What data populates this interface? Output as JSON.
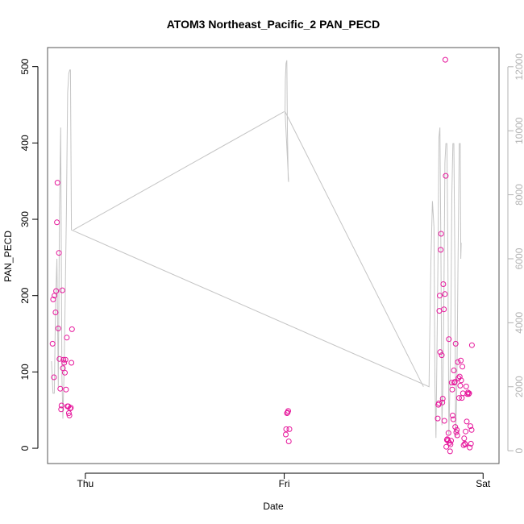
{
  "chart_data": {
    "type": "scatter",
    "title": "ATOM3 Northeast_Pacific_2 PAN_PECD",
    "xlabel": "Date",
    "ylabel": "PAN_PECD",
    "x_ticks": [
      {
        "label": "Thu",
        "day": 0
      },
      {
        "label": "Fri",
        "day": 1
      },
      {
        "label": "Sat",
        "day": 2
      }
    ],
    "xlim": [
      -0.19,
      2.08
    ],
    "ylim": [
      -20,
      525
    ],
    "y_ticks": [
      0,
      100,
      200,
      300,
      400,
      500
    ],
    "y2lim": [
      -400,
      12600
    ],
    "y2_ticks": [
      0,
      2000,
      4000,
      6000,
      8000,
      10000,
      12000
    ],
    "point_color": "#e6169b",
    "line_color": "#c4c4c4",
    "points": [
      {
        "x": -0.165,
        "y": 137
      },
      {
        "x": -0.162,
        "y": 195
      },
      {
        "x": -0.158,
        "y": 93
      },
      {
        "x": -0.155,
        "y": 200
      },
      {
        "x": -0.15,
        "y": 178
      },
      {
        "x": -0.147,
        "y": 206
      },
      {
        "x": -0.143,
        "y": 296
      },
      {
        "x": -0.14,
        "y": 348
      },
      {
        "x": -0.136,
        "y": 157
      },
      {
        "x": -0.133,
        "y": 256
      },
      {
        "x": -0.13,
        "y": 117
      },
      {
        "x": -0.126,
        "y": 78
      },
      {
        "x": -0.122,
        "y": 51
      },
      {
        "x": -0.12,
        "y": 56
      },
      {
        "x": -0.116,
        "y": 207
      },
      {
        "x": -0.113,
        "y": 105
      },
      {
        "x": -0.11,
        "y": 116
      },
      {
        "x": -0.106,
        "y": 112
      },
      {
        "x": -0.103,
        "y": 99
      },
      {
        "x": -0.1,
        "y": 116
      },
      {
        "x": -0.097,
        "y": 77
      },
      {
        "x": -0.093,
        "y": 145
      },
      {
        "x": -0.09,
        "y": 55
      },
      {
        "x": -0.086,
        "y": 55
      },
      {
        "x": -0.083,
        "y": 46
      },
      {
        "x": -0.08,
        "y": 43
      },
      {
        "x": -0.077,
        "y": 52
      },
      {
        "x": -0.073,
        "y": 53
      },
      {
        "x": -0.07,
        "y": 112
      },
      {
        "x": -0.067,
        "y": 156
      },
      {
        "x": 1.008,
        "y": 18
      },
      {
        "x": 1.01,
        "y": 25
      },
      {
        "x": 1.014,
        "y": 46
      },
      {
        "x": 1.017,
        "y": 47
      },
      {
        "x": 1.02,
        "y": 49
      },
      {
        "x": 1.023,
        "y": 9
      },
      {
        "x": 1.026,
        "y": 25
      },
      {
        "x": 1.772,
        "y": 39
      },
      {
        "x": 1.775,
        "y": 57
      },
      {
        "x": 1.778,
        "y": 59
      },
      {
        "x": 1.78,
        "y": 180
      },
      {
        "x": 1.782,
        "y": 200
      },
      {
        "x": 1.784,
        "y": 126
      },
      {
        "x": 1.787,
        "y": 260
      },
      {
        "x": 1.789,
        "y": 281
      },
      {
        "x": 1.792,
        "y": 122
      },
      {
        "x": 1.795,
        "y": 60
      },
      {
        "x": 1.797,
        "y": 65
      },
      {
        "x": 1.8,
        "y": 215
      },
      {
        "x": 1.803,
        "y": 182
      },
      {
        "x": 1.805,
        "y": 36
      },
      {
        "x": 1.808,
        "y": 202
      },
      {
        "x": 1.81,
        "y": 509
      },
      {
        "x": 1.812,
        "y": 357
      },
      {
        "x": 1.815,
        "y": 2
      },
      {
        "x": 1.818,
        "y": 11
      },
      {
        "x": 1.82,
        "y": 12
      },
      {
        "x": 1.823,
        "y": 10
      },
      {
        "x": 1.826,
        "y": 20
      },
      {
        "x": 1.828,
        "y": 143
      },
      {
        "x": 1.831,
        "y": 7
      },
      {
        "x": 1.834,
        "y": -4
      },
      {
        "x": 1.836,
        "y": 5
      },
      {
        "x": 1.839,
        "y": 10
      },
      {
        "x": 1.842,
        "y": 86
      },
      {
        "x": 1.845,
        "y": 77
      },
      {
        "x": 1.847,
        "y": 43
      },
      {
        "x": 1.85,
        "y": 38
      },
      {
        "x": 1.853,
        "y": 102
      },
      {
        "x": 1.855,
        "y": 86
      },
      {
        "x": 1.858,
        "y": 87
      },
      {
        "x": 1.86,
        "y": 28
      },
      {
        "x": 1.862,
        "y": 137
      },
      {
        "x": 1.865,
        "y": 21
      },
      {
        "x": 1.868,
        "y": 24
      },
      {
        "x": 1.87,
        "y": 17
      },
      {
        "x": 1.873,
        "y": 113
      },
      {
        "x": 1.876,
        "y": 92
      },
      {
        "x": 1.879,
        "y": 66
      },
      {
        "x": 1.882,
        "y": 94
      },
      {
        "x": 1.885,
        "y": 82
      },
      {
        "x": 1.888,
        "y": 115
      },
      {
        "x": 1.89,
        "y": 89
      },
      {
        "x": 1.893,
        "y": 66
      },
      {
        "x": 1.896,
        "y": 107
      },
      {
        "x": 1.899,
        "y": 72
      },
      {
        "x": 1.902,
        "y": 4
      },
      {
        "x": 1.905,
        "y": 13
      },
      {
        "x": 1.908,
        "y": 6
      },
      {
        "x": 1.91,
        "y": 5
      },
      {
        "x": 1.912,
        "y": 22
      },
      {
        "x": 1.915,
        "y": 81
      },
      {
        "x": 1.918,
        "y": 35
      },
      {
        "x": 1.921,
        "y": 71
      },
      {
        "x": 1.924,
        "y": 73
      },
      {
        "x": 1.927,
        "y": 71
      },
      {
        "x": 1.93,
        "y": 72
      },
      {
        "x": 1.933,
        "y": 1
      },
      {
        "x": 1.936,
        "y": 29
      },
      {
        "x": 1.939,
        "y": 6
      },
      {
        "x": 1.942,
        "y": 24
      },
      {
        "x": 1.944,
        "y": 135
      }
    ],
    "line_series": [
      [
        {
          "x": -0.17,
          "y2": 2800
        },
        {
          "x": -0.163,
          "y2": 1800
        },
        {
          "x": -0.156,
          "y2": 1800
        },
        {
          "x": -0.15,
          "y2": 4600
        },
        {
          "x": -0.143,
          "y2": 6000
        },
        {
          "x": -0.136,
          "y2": 2000
        },
        {
          "x": -0.13,
          "y2": 7500
        },
        {
          "x": -0.124,
          "y2": 10100
        },
        {
          "x": -0.118,
          "y2": 2300
        },
        {
          "x": -0.113,
          "y2": 1000
        },
        {
          "x": -0.107,
          "y2": 2500
        },
        {
          "x": -0.101,
          "y2": 5000
        },
        {
          "x": -0.095,
          "y2": 7500
        },
        {
          "x": -0.089,
          "y2": 11200
        },
        {
          "x": -0.083,
          "y2": 11800
        },
        {
          "x": -0.078,
          "y2": 11900
        },
        {
          "x": -0.075,
          "y2": 11900
        },
        {
          "x": -0.072,
          "y2": 9000
        },
        {
          "x": -0.07,
          "y2": 6900
        },
        {
          "x": 1.728,
          "y2": 2000
        },
        {
          "x": 1.73,
          "y2": 3000
        },
        {
          "x": 1.738,
          "y2": 6000
        },
        {
          "x": 1.745,
          "y2": 7800
        },
        {
          "x": 1.753,
          "y2": 7000
        },
        {
          "x": 1.758,
          "y2": 2000
        },
        {
          "x": 1.763,
          "y2": 400
        },
        {
          "x": 1.768,
          "y2": 3000
        },
        {
          "x": 1.773,
          "y2": 6000
        },
        {
          "x": 1.778,
          "y2": 9800
        },
        {
          "x": 1.783,
          "y2": 10100
        },
        {
          "x": 1.788,
          "y2": 6000
        },
        {
          "x": 1.793,
          "y2": 800
        },
        {
          "x": 1.798,
          "y2": 2000
        },
        {
          "x": 1.803,
          "y2": 5000
        },
        {
          "x": 1.808,
          "y2": 9000
        },
        {
          "x": 1.813,
          "y2": 9600
        },
        {
          "x": 1.818,
          "y2": 9600
        },
        {
          "x": 1.823,
          "y2": 6000
        },
        {
          "x": 1.828,
          "y2": 500
        },
        {
          "x": 1.833,
          "y2": 2000
        },
        {
          "x": 1.838,
          "y2": 4000
        },
        {
          "x": 1.843,
          "y2": 8000
        },
        {
          "x": 1.848,
          "y2": 9600
        },
        {
          "x": 1.853,
          "y2": 9600
        },
        {
          "x": 1.858,
          "y2": 6000
        },
        {
          "x": 1.862,
          "y2": 400
        },
        {
          "x": 1.868,
          "y2": 2000
        },
        {
          "x": 1.874,
          "y2": 6000
        },
        {
          "x": 1.88,
          "y2": 9600
        },
        {
          "x": 1.885,
          "y2": 9600
        },
        {
          "x": 1.888,
          "y2": 6000
        },
        {
          "x": 1.89,
          "y2": 6500
        }
      ],
      [
        {
          "x": -0.06,
          "y2": 6900
        },
        {
          "x": 1.0,
          "y2": 10600
        }
      ],
      [
        {
          "x": 1.004,
          "y2": 10600
        },
        {
          "x": 1.006,
          "y2": 11600
        },
        {
          "x": 1.009,
          "y2": 12100
        },
        {
          "x": 1.013,
          "y2": 12200
        },
        {
          "x": 1.016,
          "y2": 10000
        },
        {
          "x": 1.02,
          "y2": 8500
        },
        {
          "x": 1.022,
          "y2": 8400
        },
        {
          "x": 1.004,
          "y2": 10600
        },
        {
          "x": 1.7,
          "y2": 2000
        }
      ]
    ]
  }
}
